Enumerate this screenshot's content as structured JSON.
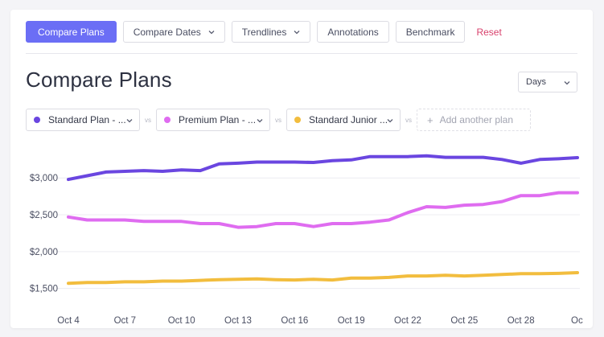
{
  "toolbar": {
    "compare_plans": "Compare Plans",
    "compare_dates": "Compare Dates",
    "trendlines": "Trendlines",
    "annotations": "Annotations",
    "benchmark": "Benchmark",
    "reset": "Reset"
  },
  "page_title": "Compare Plans",
  "range_select": {
    "value": "Days"
  },
  "plans": [
    {
      "label": "Standard Plan - ...",
      "color": "#6a46e0"
    },
    {
      "label": "Premium Plan - ...",
      "color": "#df6cf0"
    },
    {
      "label": "Standard Junior ...",
      "color": "#f2bd3e"
    }
  ],
  "vs_label": "vs",
  "add_plan": "Add another plan",
  "chart_data": {
    "type": "line",
    "x": [
      "Oct 4",
      "Oct 5",
      "Oct 6",
      "Oct 7",
      "Oct 8",
      "Oct 9",
      "Oct 10",
      "Oct 11",
      "Oct 12",
      "Oct 13",
      "Oct 14",
      "Oct 15",
      "Oct 16",
      "Oct 17",
      "Oct 18",
      "Oct 19",
      "Oct 20",
      "Oct 21",
      "Oct 22",
      "Oct 23",
      "Oct 24",
      "Oct 25",
      "Oct 26",
      "Oct 27",
      "Oct 28",
      "Oct 29",
      "Oct 30",
      "Oct 31"
    ],
    "x_tick_labels": [
      "Oct 4",
      "Oct 7",
      "Oct 10",
      "Oct 13",
      "Oct 16",
      "Oct 19",
      "Oct 22",
      "Oct 25",
      "Oct 28",
      "Oc"
    ],
    "y_tick_labels": [
      "$1,500",
      "$2,000",
      "$2,500",
      "$3,000"
    ],
    "y_ticks": [
      1500,
      2000,
      2500,
      3000
    ],
    "ylim": [
      1300,
      3450
    ],
    "grid": true,
    "series": [
      {
        "color": "#6a46e0",
        "values": [
          2980,
          3030,
          3080,
          3090,
          3100,
          3090,
          3110,
          3100,
          3190,
          3200,
          3215,
          3215,
          3215,
          3210,
          3235,
          3245,
          3290,
          3290,
          3290,
          3300,
          3280,
          3280,
          3280,
          3250,
          3200,
          3250,
          3260,
          3275
        ]
      },
      {
        "color": "#df6cf0",
        "values": [
          2470,
          2430,
          2430,
          2430,
          2410,
          2410,
          2410,
          2380,
          2380,
          2330,
          2340,
          2380,
          2380,
          2340,
          2380,
          2380,
          2400,
          2430,
          2530,
          2610,
          2600,
          2630,
          2640,
          2680,
          2760,
          2760,
          2800,
          2800
        ]
      },
      {
        "color": "#f2bd3e",
        "values": [
          1570,
          1580,
          1580,
          1590,
          1590,
          1600,
          1600,
          1610,
          1620,
          1625,
          1630,
          1620,
          1615,
          1625,
          1615,
          1640,
          1640,
          1650,
          1670,
          1670,
          1680,
          1670,
          1680,
          1690,
          1700,
          1700,
          1705,
          1715
        ]
      }
    ]
  }
}
